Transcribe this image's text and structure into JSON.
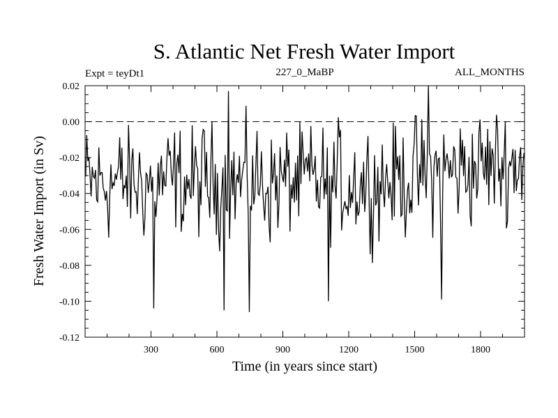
{
  "chart_data": {
    "type": "line",
    "title": "S. Atlantic Net Fresh Water Import",
    "subtitle_left": "Expt = teyDt1",
    "subtitle_center": "227_0_MaBP",
    "subtitle_right": "ALL_MONTHS",
    "xlabel": "Time (in years since start)",
    "ylabel": "Fresh Water Import (in Sv)",
    "xlim": [
      0,
      2000
    ],
    "ylim": [
      -0.12,
      0.02
    ],
    "x_ticks": [
      300,
      600,
      900,
      1200,
      1500,
      1800
    ],
    "x_tick_labels": [
      "300",
      "600",
      "900",
      "1200",
      "1500",
      "1800"
    ],
    "y_ticks": [
      0.02,
      0.0,
      -0.02,
      -0.04,
      -0.06,
      -0.08,
      -0.1,
      -0.12
    ],
    "y_tick_labels": [
      "0.02",
      "0.00",
      "-0.02",
      "-0.04",
      "-0.06",
      "-0.08",
      "-0.10",
      "-0.12"
    ],
    "reference_line": {
      "y": 0.0,
      "style": "dashed"
    },
    "series": [
      {
        "name": "Net fresh water import",
        "sample_interval_years": 5,
        "points_count": 400,
        "key_extremes": [
          {
            "x": 310,
            "y": -0.104
          },
          {
            "x": 630,
            "y": -0.105
          },
          {
            "x": 650,
            "y": 0.017
          },
          {
            "x": 745,
            "y": -0.106
          },
          {
            "x": 1105,
            "y": -0.1
          },
          {
            "x": 1560,
            "y": 0.02
          },
          {
            "x": 1620,
            "y": -0.099
          }
        ]
      }
    ],
    "grid": false,
    "legend": "none"
  }
}
